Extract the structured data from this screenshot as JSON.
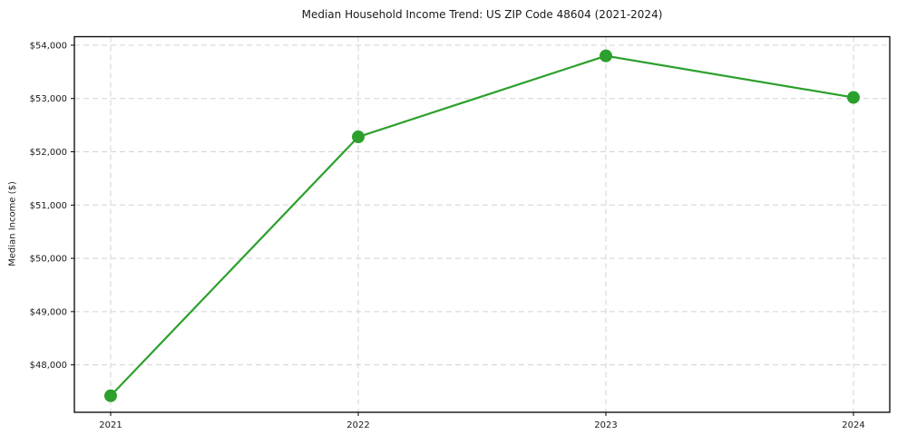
{
  "figure": {
    "background": "#ffffff"
  },
  "chart_data": {
    "type": "line",
    "title": "Median Household Income Trend: US ZIP Code 48604 (2021-2024)",
    "xlabel": "",
    "ylabel": "Median Income ($)",
    "categories": [
      "2021",
      "2022",
      "2023",
      "2024"
    ],
    "values": [
      47420,
      52280,
      53800,
      53020
    ],
    "yticks": [
      {
        "value": 48000,
        "label": "$48,000"
      },
      {
        "value": 49000,
        "label": "$49,000"
      },
      {
        "value": 50000,
        "label": "$50,000"
      },
      {
        "value": 51000,
        "label": "$51,000"
      },
      {
        "value": 52000,
        "label": "$52,000"
      },
      {
        "value": 53000,
        "label": "$53,000"
      },
      {
        "value": 54000,
        "label": "$54,000"
      }
    ],
    "ylim": [
      47110,
      54160
    ],
    "grid": true,
    "grid_style": "dashed",
    "legend": "none",
    "colors": {
      "line": "#2ca02c",
      "marker": "#2ca02c",
      "grid": "#d3d3d3",
      "spine": "#000000",
      "text": "#1a1a1a",
      "background": "#ffffff"
    }
  }
}
